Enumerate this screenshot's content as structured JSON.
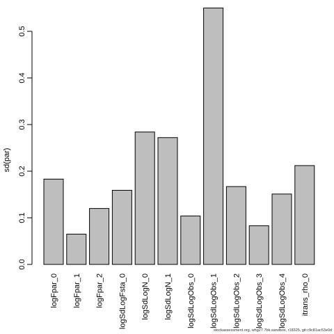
{
  "chart_data": {
    "type": "bar",
    "ylabel": "sd(par)",
    "xlabel": "",
    "title": "",
    "ylim": [
      0,
      0.55
    ],
    "yticks": [
      0.0,
      0.1,
      0.2,
      0.3,
      0.4,
      0.5
    ],
    "ytick_labels": [
      "0.0",
      "0.1",
      "0.2",
      "0.3",
      "0.4",
      "0.5"
    ],
    "categories": [
      "logFpar_0",
      "logFpar_1",
      "logFpar_2",
      "logSdLogFsta_0",
      "logSdLogN_0",
      "logSdLogN_1",
      "logSdLogObs_0",
      "logSdLogObs_1",
      "logSdLogObs_2",
      "logSdLogObs_3",
      "logSdLogObs_4",
      "itrans_rho_0"
    ],
    "values": [
      0.183,
      0.065,
      0.12,
      0.159,
      0.284,
      0.272,
      0.104,
      0.55,
      0.167,
      0.083,
      0.151,
      0.212
    ],
    "grid": false,
    "bar_color": "#bebebe",
    "bar_stroke": "#000000"
  },
  "footer": {
    "text": "stockassessment.org, whg27 7bk.sandbox, r18325, git:c9c81ac53e0d"
  }
}
